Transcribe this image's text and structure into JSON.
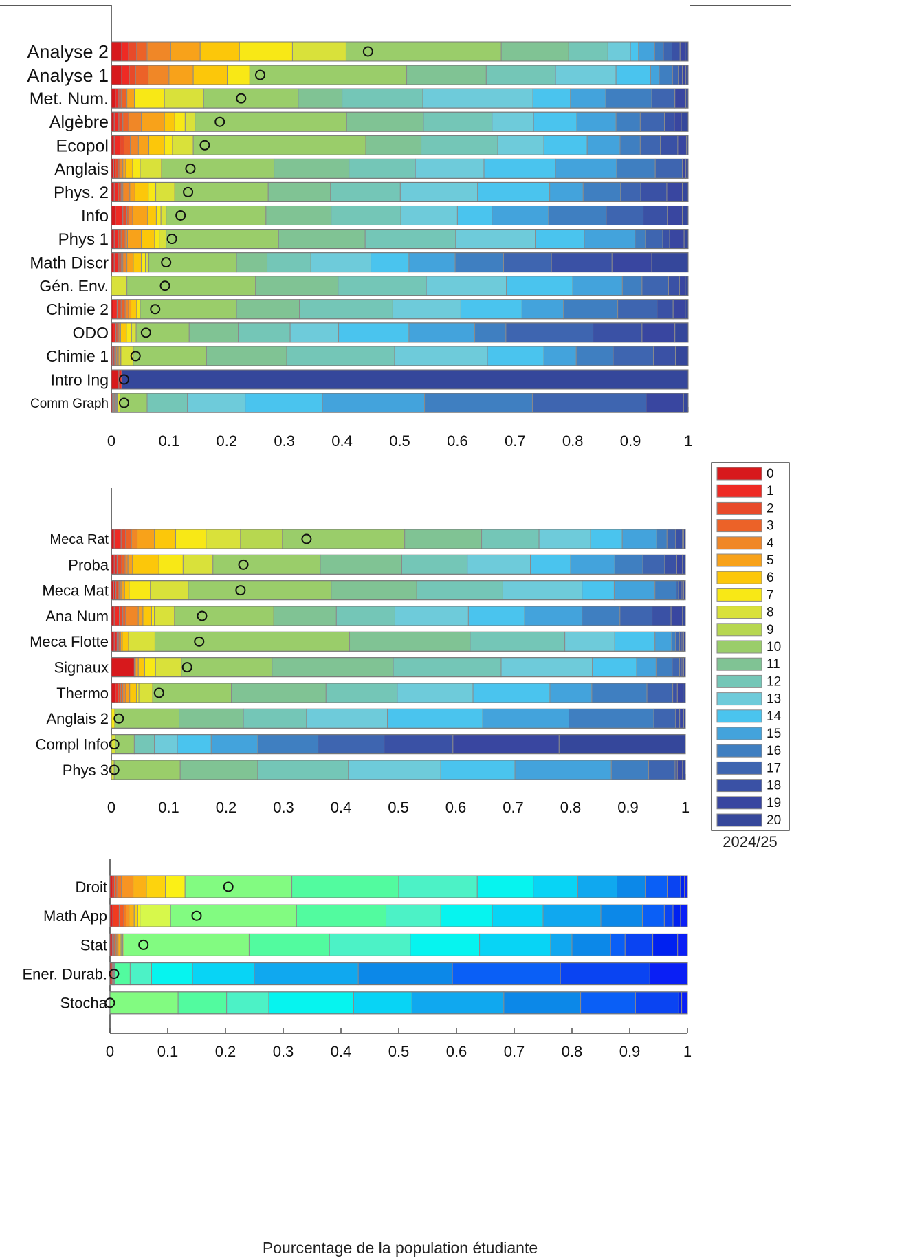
{
  "chart_data": [
    {
      "type": "bar",
      "orientation": "horizontal-stacked",
      "grades": [
        0,
        1,
        2,
        3,
        4,
        5,
        6,
        7,
        8,
        9,
        10,
        11,
        12,
        13,
        14,
        15,
        16,
        17,
        18,
        19,
        20
      ],
      "xlim": [
        0,
        1
      ],
      "x_ticks": [
        "0",
        "0.1",
        "0.2",
        "0.3",
        "0.4",
        "0.5",
        "0.6",
        "0.7",
        "0.8",
        "0.9",
        "1"
      ],
      "marker": "circle = median position",
      "courses": [
        {
          "label": "Analyse 2",
          "marker": 0.445,
          "cum": [
            0.018,
            0.03,
            0.044,
            0.062,
            0.103,
            0.154,
            0.222,
            0.314,
            0.407,
            0.407,
            0.676,
            0.793,
            0.861,
            0.9,
            0.914,
            0.942,
            0.957,
            0.972,
            0.986,
            0.995,
            1
          ]
        },
        {
          "label": "Analyse 1",
          "marker": 0.258,
          "cum": [
            0.018,
            0.031,
            0.042,
            0.064,
            0.1,
            0.142,
            0.201,
            0.24,
            0.24,
            0.24,
            0.512,
            0.65,
            0.77,
            0.875,
            0.935,
            0.95,
            0.973,
            0.983,
            0.99,
            0.996,
            1
          ]
        },
        {
          "label": "Met. Num.",
          "marker": 0.225,
          "cum": [
            0.007,
            0.013,
            0.017,
            0.027,
            0.027,
            0.04,
            0.04,
            0.092,
            0.16,
            0.16,
            0.324,
            0.4,
            0.54,
            0.731,
            0.796,
            0.857,
            0.937,
            0.977,
            0.977,
            0.996,
            1
          ]
        },
        {
          "label": "Algèbre",
          "marker": 0.188,
          "cum": [
            0.005,
            0.013,
            0.02,
            0.03,
            0.052,
            0.092,
            0.11,
            0.128,
            0.145,
            0.145,
            0.408,
            0.541,
            0.66,
            0.732,
            0.807,
            0.875,
            0.917,
            0.959,
            0.976,
            0.988,
            1
          ]
        },
        {
          "label": "Ecopol",
          "marker": 0.162,
          "cum": [
            0.005,
            0.015,
            0.022,
            0.033,
            0.047,
            0.065,
            0.092,
            0.106,
            0.142,
            0.142,
            0.441,
            0.537,
            0.67,
            0.75,
            0.825,
            0.882,
            0.917,
            0.952,
            0.982,
            0.997,
            1
          ]
        },
        {
          "label": "Anglais",
          "marker": 0.137,
          "cum": [
            0.004,
            0.007,
            0.013,
            0.015,
            0.02,
            0.025,
            0.037,
            0.05,
            0.087,
            0.087,
            0.282,
            0.412,
            0.527,
            0.646,
            0.77,
            0.876,
            0.943,
            0.99,
            0.99,
            0.996,
            1
          ]
        },
        {
          "label": "Phys. 2",
          "marker": 0.133,
          "cum": [
            0.005,
            0.012,
            0.017,
            0.02,
            0.032,
            0.041,
            0.064,
            0.077,
            0.11,
            0.11,
            0.272,
            0.38,
            0.501,
            0.635,
            0.76,
            0.818,
            0.883,
            0.918,
            0.963,
            0.99,
            1
          ]
        },
        {
          "label": "Info",
          "marker": 0.12,
          "cum": [
            0.007,
            0.02,
            0.027,
            0.03,
            0.037,
            0.063,
            0.078,
            0.086,
            0.095,
            0.095,
            0.268,
            0.381,
            0.502,
            0.6,
            0.66,
            0.758,
            0.858,
            0.922,
            0.964,
            0.99,
            1
          ]
        },
        {
          "label": "Phys 1",
          "marker": 0.105,
          "cum": [
            0.005,
            0.012,
            0.017,
            0.024,
            0.028,
            0.052,
            0.075,
            0.083,
            0.095,
            0.095,
            0.29,
            0.44,
            0.597,
            0.735,
            0.82,
            0.908,
            0.926,
            0.956,
            0.968,
            0.993,
            1
          ]
        },
        {
          "label": "Math Discr",
          "marker": 0.095,
          "cum": [
            0.005,
            0.013,
            0.017,
            0.02,
            0.027,
            0.038,
            0.052,
            0.059,
            0.065,
            0.065,
            0.217,
            0.27,
            0.346,
            0.45,
            0.516,
            0.596,
            0.68,
            0.763,
            0.868,
            0.937,
            1
          ]
        },
        {
          "label": "Gén. Env.",
          "marker": 0.093,
          "cum": [
            0.0,
            0.0,
            0.0,
            0.0,
            0.0,
            0.0,
            0.0,
            0.0,
            0.027,
            0.027,
            0.25,
            0.393,
            0.546,
            0.685,
            0.8,
            0.886,
            0.92,
            0.966,
            0.985,
            0.995,
            1
          ]
        },
        {
          "label": "Chimie 2",
          "marker": 0.076,
          "cum": [
            0.003,
            0.01,
            0.017,
            0.024,
            0.03,
            0.034,
            0.044,
            0.05,
            0.05,
            0.05,
            0.217,
            0.326,
            0.488,
            0.606,
            0.712,
            0.784,
            0.878,
            0.946,
            0.974,
            0.995,
            1
          ]
        },
        {
          "label": "ODO",
          "marker": 0.06,
          "cum": [
            0.003,
            0.008,
            0.011,
            0.013,
            0.016,
            0.016,
            0.026,
            0.035,
            0.043,
            0.043,
            0.135,
            0.22,
            0.31,
            0.394,
            0.516,
            0.63,
            0.684,
            0.835,
            0.92,
            0.977,
            1
          ]
        },
        {
          "label": "Chimie 1",
          "marker": 0.042,
          "cum": [
            0.002,
            0.005,
            0.007,
            0.008,
            0.01,
            0.013,
            0.016,
            0.018,
            0.038,
            0.038,
            0.165,
            0.304,
            0.491,
            0.652,
            0.75,
            0.806,
            0.87,
            0.94,
            0.978,
            0.978,
            1
          ]
        },
        {
          "label": "Intro Ing",
          "marker": 0.022,
          "cum": [
            0.013,
            0.018,
            0.018,
            0.018,
            0.018,
            0.018,
            0.018,
            0.018,
            0.018,
            0.018,
            0.018,
            0.018,
            0.018,
            0.018,
            0.018,
            0.018,
            0.018,
            0.018,
            0.018,
            0.018,
            1
          ]
        },
        {
          "label": "Comm Graph",
          "marker": 0.022,
          "cum": [
            0.002,
            0.004,
            0.005,
            0.007,
            0.008,
            0.009,
            0.01,
            0.011,
            0.015,
            0.015,
            0.062,
            0.062,
            0.132,
            0.232,
            0.366,
            0.543,
            0.73,
            0.927,
            0.927,
            0.992,
            1
          ]
        }
      ]
    },
    {
      "type": "bar",
      "orientation": "horizontal-stacked",
      "grades": [
        0,
        1,
        2,
        3,
        4,
        5,
        6,
        7,
        8,
        9,
        10,
        11,
        12,
        13,
        14,
        15,
        16,
        17,
        18,
        19,
        20
      ],
      "xlim": [
        0,
        1
      ],
      "x_ticks": [
        "0",
        "0.1",
        "0.2",
        "0.3",
        "0.4",
        "0.5",
        "0.6",
        "0.7",
        "0.8",
        "0.9",
        "1"
      ],
      "courses": [
        {
          "label": "Meca Rat",
          "marker": 0.34,
          "cum": [
            0.005,
            0.017,
            0.025,
            0.035,
            0.045,
            0.075,
            0.112,
            0.165,
            0.225,
            0.298,
            0.511,
            0.645,
            0.745,
            0.835,
            0.89,
            0.95,
            0.968,
            0.983,
            0.995,
            0.997,
            1
          ]
        },
        {
          "label": "Proba",
          "marker": 0.23,
          "cum": [
            0.005,
            0.01,
            0.018,
            0.024,
            0.029,
            0.037,
            0.083,
            0.125,
            0.177,
            0.177,
            0.364,
            0.506,
            0.62,
            0.73,
            0.8,
            0.877,
            0.926,
            0.964,
            0.985,
            0.995,
            1
          ]
        },
        {
          "label": "Meca Mat",
          "marker": 0.225,
          "cum": [
            0.004,
            0.008,
            0.012,
            0.014,
            0.017,
            0.023,
            0.031,
            0.068,
            0.134,
            0.134,
            0.383,
            0.532,
            0.682,
            0.82,
            0.876,
            0.947,
            0.984,
            0.988,
            0.994,
            0.997,
            1
          ]
        },
        {
          "label": "Ana Num",
          "marker": 0.158,
          "cum": [
            0.005,
            0.014,
            0.02,
            0.025,
            0.047,
            0.055,
            0.07,
            0.075,
            0.11,
            0.11,
            0.283,
            0.392,
            0.494,
            0.622,
            0.72,
            0.82,
            0.886,
            0.942,
            0.975,
            0.995,
            1
          ]
        },
        {
          "label": "Meca Flotte",
          "marker": 0.153,
          "cum": [
            0.005,
            0.01,
            0.013,
            0.015,
            0.016,
            0.019,
            0.03,
            0.03,
            0.076,
            0.076,
            0.415,
            0.625,
            0.79,
            0.877,
            0.947,
            0.976,
            0.983,
            0.99,
            0.994,
            0.997,
            1
          ]
        },
        {
          "label": "Signaux",
          "marker": 0.132,
          "cum": [
            0.04,
            0.042,
            0.042,
            0.042,
            0.042,
            0.047,
            0.058,
            0.077,
            0.122,
            0.122,
            0.28,
            0.491,
            0.679,
            0.838,
            0.915,
            0.949,
            0.977,
            0.99,
            0.994,
            0.997,
            1
          ]
        },
        {
          "label": "Thermo",
          "marker": 0.083,
          "cum": [
            0.007,
            0.012,
            0.016,
            0.02,
            0.025,
            0.032,
            0.044,
            0.048,
            0.072,
            0.072,
            0.209,
            0.374,
            0.498,
            0.63,
            0.764,
            0.837,
            0.933,
            0.978,
            0.986,
            0.996,
            1
          ]
        },
        {
          "label": "Anglais 2",
          "marker": 0.013,
          "cum": [
            0.0,
            0.0,
            0.0,
            0.0,
            0.0,
            0.0,
            0.0,
            0.006,
            0.006,
            0.006,
            0.118,
            0.23,
            0.34,
            0.481,
            0.647,
            0.797,
            0.945,
            0.983,
            0.99,
            0.997,
            1
          ]
        },
        {
          "label": "Compl Info",
          "marker": 0.005,
          "cum": [
            0.0,
            0.0,
            0.0,
            0.0,
            0.0,
            0.0,
            0.0,
            0.0,
            0.007,
            0.007,
            0.04,
            0.04,
            0.075,
            0.115,
            0.174,
            0.255,
            0.36,
            0.475,
            0.595,
            0.78,
            1
          ]
        },
        {
          "label": "Phys 3",
          "marker": 0.005,
          "cum": [
            0.0,
            0.0,
            0.0,
            0.0,
            0.0,
            0.0,
            0.0,
            0.0,
            0.005,
            0.005,
            0.12,
            0.255,
            0.413,
            0.574,
            0.703,
            0.871,
            0.936,
            0.982,
            0.986,
            0.995,
            1
          ]
        }
      ]
    },
    {
      "type": "bar",
      "orientation": "horizontal-stacked",
      "grades": [
        0,
        1,
        2,
        3,
        4,
        5,
        6,
        7,
        8,
        9,
        10,
        11,
        12,
        13,
        14,
        15,
        16,
        17,
        18,
        19,
        20
      ],
      "xlim": [
        0,
        1
      ],
      "x_ticks": [
        "0",
        "0.1",
        "0.2",
        "0.3",
        "0.4",
        "0.5",
        "0.6",
        "0.7",
        "0.8",
        "0.9",
        "1"
      ],
      "xlabel": "Pourcentage de la population étudiante",
      "courses": [
        {
          "label": "Droit",
          "marker": 0.205,
          "cum": [
            0.005,
            0.008,
            0.012,
            0.02,
            0.04,
            0.063,
            0.096,
            0.13,
            0.13,
            0.13,
            0.315,
            0.5,
            0.636,
            0.733,
            0.81,
            0.878,
            0.927,
            0.965,
            0.988,
            0.995,
            1
          ]
        },
        {
          "label": "Math App",
          "marker": 0.15,
          "cum": [
            0.005,
            0.016,
            0.024,
            0.028,
            0.033,
            0.042,
            0.048,
            0.052,
            0.105,
            0.105,
            0.323,
            0.478,
            0.573,
            0.662,
            0.75,
            0.85,
            0.922,
            0.96,
            0.975,
            0.988,
            1
          ]
        },
        {
          "label": "Stat",
          "marker": 0.058,
          "cum": [
            0.004,
            0.007,
            0.01,
            0.012,
            0.014,
            0.018,
            0.02,
            0.022,
            0.024,
            0.024,
            0.241,
            0.38,
            0.52,
            0.64,
            0.763,
            0.8,
            0.867,
            0.892,
            0.94,
            0.983,
            1
          ]
        },
        {
          "label": "Ener. Durab.",
          "marker": 0.007,
          "cum": [
            0.002,
            0.004,
            0.006,
            0.007,
            0.008,
            0.008,
            0.008,
            0.008,
            0.008,
            0.008,
            0.008,
            0.035,
            0.072,
            0.143,
            0.25,
            0.43,
            0.593,
            0.78,
            0.935,
            0.935,
            1
          ]
        },
        {
          "label": "Stocha",
          "marker": 0.0,
          "cum": [
            0.0,
            0.0,
            0.0,
            0.0,
            0.0,
            0.0,
            0.0,
            0.0,
            0.0,
            0.0,
            0.118,
            0.202,
            0.275,
            0.422,
            0.523,
            0.682,
            0.815,
            0.91,
            0.985,
            0.99,
            1
          ]
        }
      ]
    }
  ],
  "legend": {
    "labels": [
      "0",
      "1",
      "2",
      "3",
      "4",
      "5",
      "6",
      "7",
      "8",
      "9",
      "10",
      "11",
      "12",
      "13",
      "14",
      "15",
      "16",
      "17",
      "18",
      "19",
      "20"
    ],
    "title": "2024/25",
    "placement": "right"
  },
  "colors": {
    "palette_a": [
      "#d7191c",
      "#ee2a24",
      "#e84a2a",
      "#ec6228",
      "#f08727",
      "#f8a21a",
      "#fcc70a",
      "#f8e816",
      "#d9e13a",
      "#b7d750",
      "#9acd6a",
      "#80c394",
      "#74c6b7",
      "#6ecbda",
      "#4ac4ee",
      "#43a3dc",
      "#3f7fc1",
      "#3e65b0",
      "#3a51a5",
      "#3946a0",
      "#35479b"
    ],
    "palette_b": [
      "#e31a1c",
      "#f03b20",
      "#f35a24",
      "#f37a22",
      "#f79423",
      "#fbb116",
      "#fdd30d",
      "#fbf016",
      "#d7f84b",
      "#a4f567",
      "#82fb81",
      "#52fb9f",
      "#4cf2c6",
      "#06f4ef",
      "#08d4f5",
      "#10a8ef",
      "#0c88e8",
      "#0a5ff6",
      "#0a44f2",
      "#0021f0",
      "#0a1ff5"
    ],
    "segment_border": "#8a8a8a",
    "marker": "#111111"
  }
}
